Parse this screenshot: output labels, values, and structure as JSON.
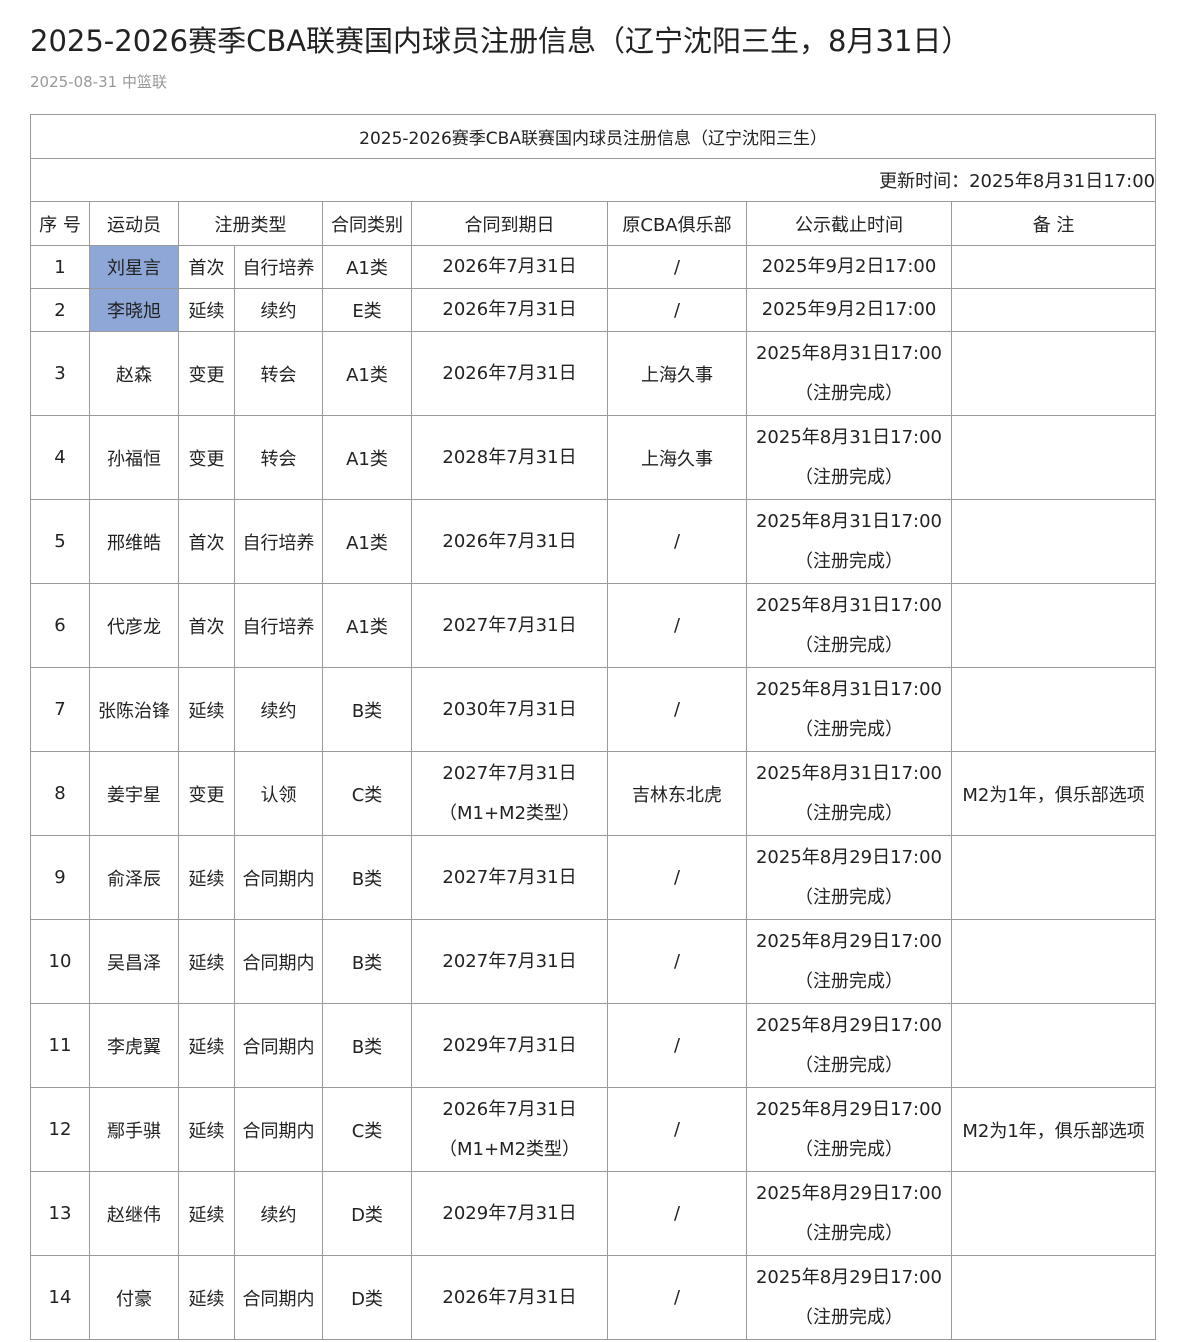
{
  "article": {
    "title": "2025-2026赛季CBA联赛国内球员注册信息（辽宁沈阳三生，8月31日）",
    "date": "2025-08-31",
    "source": "中篮联"
  },
  "table": {
    "caption": "2025-2026赛季CBA联赛国内球员注册信息（辽宁沈阳三生）",
    "updated": "更新时间：2025年8月31日17:00",
    "headers": [
      "序 号",
      "运动员",
      "注册类型",
      "合同类别",
      "合同到期日",
      "原CBA俱乐部",
      "公示截止时间",
      "备 注"
    ],
    "highlight_color": "#8fa7d6",
    "rows": [
      {
        "no": "1",
        "name": "刘星言",
        "reg": "首次",
        "sub": "自行培养",
        "cat": "A1类",
        "exp": "2026年7月31日",
        "exp2": "",
        "club": "/",
        "deadline": "2025年9月2日17:00",
        "status": "",
        "note": "",
        "highlight": true
      },
      {
        "no": "2",
        "name": "李晓旭",
        "reg": "延续",
        "sub": "续约",
        "cat": "E类",
        "exp": "2026年7月31日",
        "exp2": "",
        "club": "/",
        "deadline": "2025年9月2日17:00",
        "status": "",
        "note": "",
        "highlight": true
      },
      {
        "no": "3",
        "name": "赵森",
        "reg": "变更",
        "sub": "转会",
        "cat": "A1类",
        "exp": "2026年7月31日",
        "exp2": "",
        "club": "上海久事",
        "deadline": "2025年8月31日17:00",
        "status": "（注册完成）",
        "note": ""
      },
      {
        "no": "4",
        "name": "孙福恒",
        "reg": "变更",
        "sub": "转会",
        "cat": "A1类",
        "exp": "2028年7月31日",
        "exp2": "",
        "club": "上海久事",
        "deadline": "2025年8月31日17:00",
        "status": "（注册完成）",
        "note": ""
      },
      {
        "no": "5",
        "name": "邢维皓",
        "reg": "首次",
        "sub": "自行培养",
        "cat": "A1类",
        "exp": "2026年7月31日",
        "exp2": "",
        "club": "/",
        "deadline": "2025年8月31日17:00",
        "status": "（注册完成）",
        "note": ""
      },
      {
        "no": "6",
        "name": "代彦龙",
        "reg": "首次",
        "sub": "自行培养",
        "cat": "A1类",
        "exp": "2027年7月31日",
        "exp2": "",
        "club": "/",
        "deadline": "2025年8月31日17:00",
        "status": "（注册完成）",
        "note": ""
      },
      {
        "no": "7",
        "name": "张陈治锋",
        "reg": "延续",
        "sub": "续约",
        "cat": "B类",
        "exp": "2030年7月31日",
        "exp2": "",
        "club": "/",
        "deadline": "2025年8月31日17:00",
        "status": "（注册完成）",
        "note": ""
      },
      {
        "no": "8",
        "name": "姜宇星",
        "reg": "变更",
        "sub": "认领",
        "cat": "C类",
        "exp": "2027年7月31日",
        "exp2": "（M1+M2类型）",
        "club": "吉林东北虎",
        "deadline": "2025年8月31日17:00",
        "status": "（注册完成）",
        "note": "M2为1年，俱乐部选项"
      },
      {
        "no": "9",
        "name": "俞泽辰",
        "reg": "延续",
        "sub": "合同期内",
        "cat": "B类",
        "exp": "2027年7月31日",
        "exp2": "",
        "club": "/",
        "deadline": "2025年8月29日17:00",
        "status": "（注册完成）",
        "note": ""
      },
      {
        "no": "10",
        "name": "吴昌泽",
        "reg": "延续",
        "sub": "合同期内",
        "cat": "B类",
        "exp": "2027年7月31日",
        "exp2": "",
        "club": "/",
        "deadline": "2025年8月29日17:00",
        "status": "（注册完成）",
        "note": ""
      },
      {
        "no": "11",
        "name": "李虎翼",
        "reg": "延续",
        "sub": "合同期内",
        "cat": "B类",
        "exp": "2029年7月31日",
        "exp2": "",
        "club": "/",
        "deadline": "2025年8月29日17:00",
        "status": "（注册完成）",
        "note": ""
      },
      {
        "no": "12",
        "name": "鄢手骐",
        "reg": "延续",
        "sub": "合同期内",
        "cat": "C类",
        "exp": "2026年7月31日",
        "exp2": "（M1+M2类型）",
        "club": "/",
        "deadline": "2025年8月29日17:00",
        "status": "（注册完成）",
        "note": "M2为1年，俱乐部选项"
      },
      {
        "no": "13",
        "name": "赵继伟",
        "reg": "延续",
        "sub": "续约",
        "cat": "D类",
        "exp": "2029年7月31日",
        "exp2": "",
        "club": "/",
        "deadline": "2025年8月29日17:00",
        "status": "（注册完成）",
        "note": ""
      },
      {
        "no": "14",
        "name": "付豪",
        "reg": "延续",
        "sub": "合同期内",
        "cat": "D类",
        "exp": "2026年7月31日",
        "exp2": "",
        "club": "/",
        "deadline": "2025年8月29日17:00",
        "status": "（注册完成）",
        "note": ""
      }
    ]
  }
}
